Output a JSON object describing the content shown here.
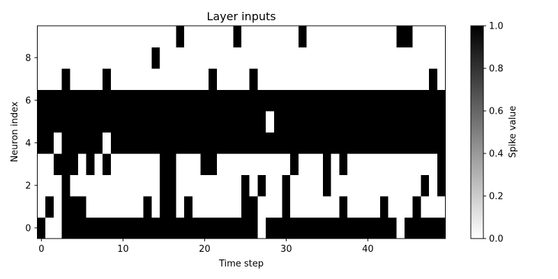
{
  "chart_data": {
    "type": "heatmap",
    "title": "Layer inputs",
    "xlabel": "Time step",
    "ylabel": "Neuron index",
    "colorbar_label": "Spike value",
    "colormap": "gray_r",
    "color_low": "#ffffff",
    "color_high": "#000000",
    "x_ticks": [
      0,
      10,
      20,
      30,
      40
    ],
    "y_ticks": [
      0,
      2,
      4,
      6,
      8
    ],
    "colorbar_ticks": [
      "0.0",
      "0.2",
      "0.4",
      "0.6",
      "0.8",
      "1.0"
    ],
    "colorbar_range": [
      0,
      1
    ],
    "n_steps": 50,
    "n_neurons": 10,
    "y_origin": "lower",
    "grid": false,
    "matrix": [
      "10011111111111111111111111101111111111111111011111",
      "01011100000001011010000001100010000001000010001000",
      "00010000000000011000000001010010000100000000000101",
      "00111010100000011000110000000001000101000000000001",
      "11011111011111111111111111111111111111111111111111",
      "11111111111111111111111111110111111111111111111111",
      "11111111111111111111111111111111111111111111111111",
      "00010000100000000000010000100000000000000000000010",
      "00000000000000100000000000000000000000000000000000",
      "00000000000000000100000010000000100000000000110000"
    ]
  }
}
